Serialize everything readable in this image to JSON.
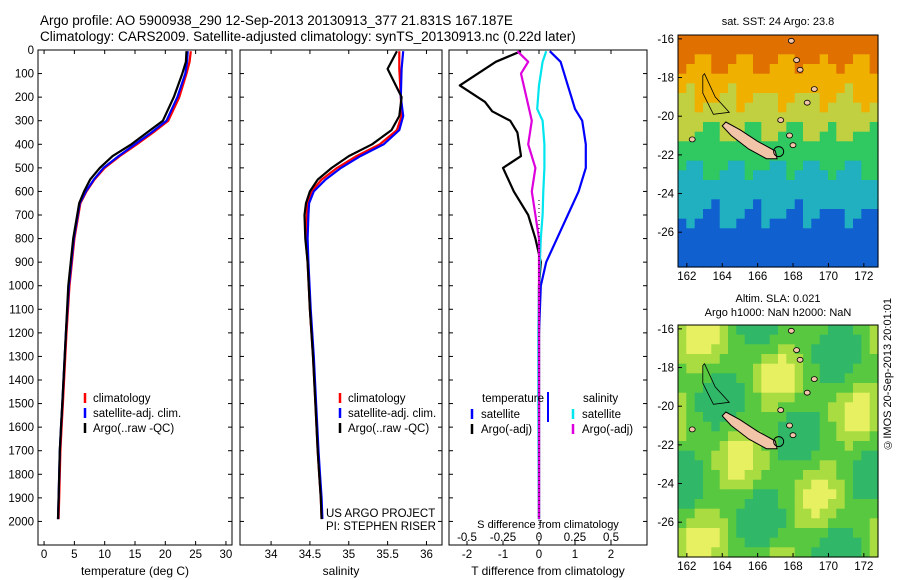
{
  "header": {
    "line1": "Argo profile: AO 5900938_290 12-Sep-2013 20130913_377 21.831S 167.187E",
    "line2": "Climatology: CARS2009. Satellite-adjusted climatology: synTS_20130913.nc (0.22d later)"
  },
  "colors": {
    "climatology": "#ff0000",
    "satellite": "#0000ff",
    "argo": "#000000",
    "sat_salinity": "#00e5ee",
    "argo_salinity": "#dd00dd",
    "land": "#f2c4a8"
  },
  "credit": {
    "project": "US ARGO PROJECT",
    "pi": "PI: STEPHEN RISER"
  },
  "side_label": "©IMOS 20-Sep-2013 20:01:01",
  "chart_data": [
    {
      "id": "temperature",
      "type": "line",
      "xlabel": "temperature (deg C)",
      "ylabel": "",
      "xlim": [
        -1,
        31
      ],
      "ylim": [
        2100,
        0
      ],
      "xticks": [
        0,
        5,
        10,
        15,
        20,
        25,
        30
      ],
      "yticks": [
        0,
        100,
        200,
        300,
        400,
        500,
        600,
        700,
        800,
        900,
        1000,
        1100,
        1200,
        1300,
        1400,
        1500,
        1600,
        1700,
        1800,
        1900,
        2000
      ],
      "legend": [
        "climatology",
        "satellite-adj. clim.",
        "Argo(..raw -QC)"
      ],
      "series": [
        {
          "name": "climatology",
          "color": "#ff0000",
          "x": [
            24.2,
            24,
            23.5,
            22.3,
            20.5,
            18,
            15.3,
            12.5,
            10,
            8.3,
            7,
            6,
            5,
            4.2,
            3.7,
            3.4,
            3.1,
            2.9,
            2.7,
            2.6,
            2.5,
            2.4
          ],
          "y": [
            5,
            50,
            100,
            200,
            300,
            350,
            400,
            450,
            500,
            550,
            600,
            650,
            800,
            1000,
            1200,
            1350,
            1500,
            1600,
            1700,
            1800,
            1900,
            1990
          ]
        },
        {
          "name": "satellite-adj. clim.",
          "color": "#0000ff",
          "x": [
            23.7,
            23.6,
            23.3,
            22,
            20.2,
            17.7,
            15,
            12.3,
            9.8,
            8.2,
            6.9,
            5.9,
            4.9,
            4.1,
            3.6,
            3.3,
            3.0,
            2.8,
            2.6,
            2.5,
            2.4,
            2.3
          ],
          "y": [
            5,
            50,
            100,
            200,
            300,
            350,
            400,
            450,
            500,
            550,
            600,
            650,
            800,
            1000,
            1200,
            1350,
            1500,
            1600,
            1700,
            1800,
            1900,
            1990
          ]
        },
        {
          "name": "Argo(..raw -QC)",
          "color": "#000000",
          "x": [
            23.5,
            23.4,
            22.8,
            21.4,
            19.6,
            17,
            14.4,
            11.3,
            9.2,
            7.6,
            6.6,
            5.8,
            4.8,
            4.0,
            3.6,
            3.3,
            3.0,
            2.8,
            2.6,
            2.5,
            2.4,
            2.3
          ],
          "y": [
            5,
            50,
            100,
            200,
            300,
            350,
            400,
            450,
            500,
            550,
            600,
            650,
            800,
            1000,
            1200,
            1350,
            1500,
            1600,
            1700,
            1800,
            1900,
            1990
          ]
        }
      ]
    },
    {
      "id": "salinity",
      "type": "line",
      "xlabel": "salinity",
      "ylabel": "",
      "xlim": [
        33.6,
        36.2
      ],
      "ylim": [
        2100,
        0
      ],
      "xticks": [
        34,
        34.5,
        35,
        35.5,
        36
      ],
      "xticklabels": [
        "34",
        "34.5",
        "35",
        "35.5",
        "36"
      ],
      "legend": [
        "climatology",
        "satellite-adj. clim.",
        "Argo(..raw -QC)"
      ],
      "series": [
        {
          "name": "climatology",
          "color": "#ff0000",
          "x": [
            35.65,
            35.65,
            35.67,
            35.68,
            35.62,
            35.4,
            35.1,
            34.85,
            34.65,
            34.52,
            34.47,
            34.46,
            34.45,
            34.47,
            34.5,
            34.54,
            34.57,
            34.6,
            34.62,
            34.64,
            34.65
          ],
          "y": [
            5,
            80,
            200,
            280,
            340,
            400,
            450,
            500,
            550,
            600,
            650,
            700,
            800,
            900,
            1100,
            1300,
            1500,
            1700,
            1800,
            1900,
            1990
          ]
        },
        {
          "name": "satellite-adj. clim.",
          "color": "#0000ff",
          "x": [
            35.7,
            35.68,
            35.67,
            35.7,
            35.65,
            35.45,
            35.15,
            34.9,
            34.7,
            34.55,
            34.49,
            34.48,
            34.47,
            34.48,
            34.51,
            34.55,
            34.58,
            34.61,
            34.63,
            34.65,
            34.66
          ],
          "y": [
            5,
            80,
            200,
            280,
            340,
            400,
            450,
            500,
            550,
            600,
            650,
            700,
            800,
            900,
            1100,
            1300,
            1500,
            1700,
            1800,
            1900,
            1990
          ]
        },
        {
          "name": "Argo(..raw -QC)",
          "color": "#000000",
          "x": [
            35.62,
            35.5,
            35.68,
            35.65,
            35.55,
            35.3,
            35.0,
            34.78,
            34.6,
            34.5,
            34.45,
            34.43,
            34.44,
            34.47,
            34.5,
            34.54,
            34.57,
            34.6,
            34.62,
            34.64,
            34.65
          ],
          "y": [
            5,
            80,
            200,
            280,
            340,
            400,
            450,
            500,
            550,
            600,
            650,
            700,
            800,
            900,
            1100,
            1300,
            1500,
            1700,
            1800,
            1900,
            1990
          ]
        }
      ]
    },
    {
      "id": "differences",
      "type": "line",
      "xlabel": "T difference from climatology",
      "xlabel_top": "S difference from climatology",
      "xlim": [
        -2.5,
        3
      ],
      "ylim": [
        2100,
        0
      ],
      "xticks": [
        -2,
        -1,
        0,
        1,
        2
      ],
      "xticks_top": [
        -0.5,
        -0.25,
        0,
        0.25,
        0.5
      ],
      "xticklabels_top": [
        "-0.5",
        "-0.25",
        "0",
        "0.25",
        "0.5"
      ],
      "legend_titles": [
        "temperature",
        "salinity"
      ],
      "legend": [
        "satellite",
        "Argo(-adj)",
        "satellite",
        "Argo(-adj)"
      ],
      "series": [
        {
          "name": "satellite",
          "group": "temperature",
          "color": "#0000ff",
          "x": [
            0.3,
            0.6,
            0.7,
            0.8,
            0.9,
            1.0,
            1.2,
            1.3,
            1.3,
            1.1,
            0.8,
            0.5,
            0.2,
            0.05,
            0,
            0,
            0
          ],
          "y": [
            5,
            50,
            100,
            150,
            200,
            250,
            300,
            400,
            500,
            600,
            700,
            800,
            900,
            1000,
            1200,
            1500,
            1990
          ]
        },
        {
          "name": "Argo(-adj)",
          "group": "temperature",
          "color": "#000000",
          "x": [
            -0.5,
            -1.2,
            -2.2,
            -1.5,
            -1.3,
            -0.8,
            -0.6,
            -0.5,
            -1.0,
            -0.7,
            -0.3,
            -0.1,
            0.05,
            0,
            0,
            0,
            0
          ],
          "y": [
            5,
            50,
            150,
            220,
            260,
            300,
            350,
            450,
            500,
            600,
            700,
            800,
            900,
            1000,
            1200,
            1500,
            1990
          ]
        },
        {
          "name": "satellite",
          "group": "salinity",
          "color": "#00e5ee",
          "x": [
            0.2,
            0.1,
            0.0,
            -0.05,
            0.1,
            0.15,
            0.15,
            0.12,
            0.1,
            0.05,
            0,
            -0.02,
            -0.02,
            -0.01,
            0
          ],
          "y": [
            5,
            50,
            150,
            250,
            300,
            400,
            500,
            600,
            700,
            800,
            1000,
            1200,
            1500,
            1800,
            1990
          ]
        },
        {
          "name": "Argo(-adj)",
          "group": "salinity",
          "color": "#dd00dd",
          "x": [
            -0.6,
            -0.3,
            -0.5,
            -0.35,
            -0.2,
            -0.3,
            -0.1,
            -0.2,
            -0.1,
            0,
            0,
            0,
            0
          ],
          "y": [
            5,
            50,
            100,
            200,
            300,
            400,
            500,
            600,
            700,
            800,
            1000,
            1500,
            1990
          ]
        }
      ]
    },
    {
      "id": "sst_map",
      "type": "heatmap",
      "title": "sat. SST: 24 Argo: 23.8",
      "xlim": [
        161.5,
        172.8
      ],
      "ylim": [
        -27.8,
        -15.8
      ],
      "xticks": [
        162,
        164,
        166,
        168,
        170,
        172
      ],
      "yticks": [
        -16,
        -18,
        -20,
        -22,
        -24,
        -26
      ],
      "argo_position": {
        "lon": 167.187,
        "lat": -21.831
      }
    },
    {
      "id": "sla_map",
      "type": "heatmap",
      "title": "Altim. SLA: 0.021",
      "subtitle": "Argo h1000: NaN h2000: NaN",
      "xlim": [
        161.5,
        172.8
      ],
      "ylim": [
        -27.8,
        -15.8
      ],
      "xticks": [
        162,
        164,
        166,
        168,
        170,
        172
      ],
      "yticks": [
        -16,
        -18,
        -20,
        -22,
        -24,
        -26
      ],
      "argo_position": {
        "lon": 167.187,
        "lat": -21.831
      }
    }
  ]
}
